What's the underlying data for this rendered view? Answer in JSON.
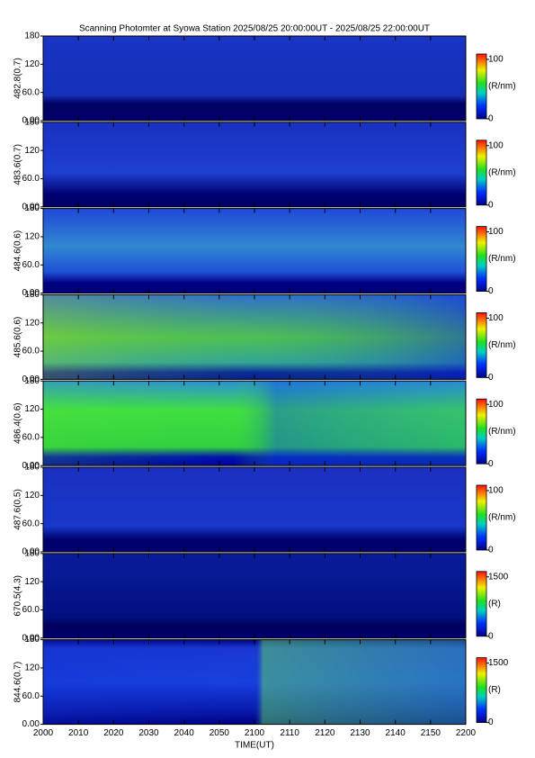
{
  "chart_data": {
    "type": "keogram",
    "title": "Scanning Photomter at Syowa Station  2025/08/25 20:00:00UT - 2025/08/25 22:00:00UT",
    "xlabel": "TIME(UT)",
    "xticks": [
      "2000",
      "2010",
      "2020",
      "2030",
      "2040",
      "2050",
      "2100",
      "2110",
      "2120",
      "2130",
      "2140",
      "2150",
      "2200"
    ],
    "panels": [
      {
        "ylabel": "482.8(0.7)",
        "ylim": [
          0,
          180
        ],
        "yticks": [
          {
            "value": 0,
            "label": "0.00"
          },
          {
            "value": 60,
            "label": "60.0"
          },
          120,
          180
        ],
        "clim": [
          0,
          100
        ],
        "cticks": [
          0,
          100
        ],
        "clabel": "(R/nm)"
      },
      {
        "ylabel": "483.6(0.7)",
        "ylim": [
          0,
          180
        ],
        "yticks": [
          {
            "value": 0,
            "label": "0.00"
          },
          {
            "value": 60,
            "label": "60.0"
          },
          120,
          180
        ],
        "clim": [
          0,
          100
        ],
        "cticks": [
          0,
          100
        ],
        "clabel": "(R/nm)"
      },
      {
        "ylabel": "484.6(0.6)",
        "ylim": [
          0,
          180
        ],
        "yticks": [
          {
            "value": 0,
            "label": "0.00"
          },
          {
            "value": 60,
            "label": "60.0"
          },
          120,
          180
        ],
        "clim": [
          0,
          100
        ],
        "cticks": [
          0,
          100
        ],
        "clabel": "(R/nm)"
      },
      {
        "ylabel": "485.6(0.6)",
        "ylim": [
          0,
          180
        ],
        "yticks": [
          {
            "value": 0,
            "label": "0.00"
          },
          {
            "value": 60,
            "label": "60.0"
          },
          120,
          180
        ],
        "clim": [
          0,
          100
        ],
        "cticks": [
          0,
          100
        ],
        "clabel": "(R/nm)"
      },
      {
        "ylabel": "486.4(0.6)",
        "ylim": [
          0,
          180
        ],
        "yticks": [
          {
            "value": 0,
            "label": "0.00"
          },
          {
            "value": 60,
            "label": "60.0"
          },
          120,
          180
        ],
        "clim": [
          0,
          100
        ],
        "cticks": [
          0,
          100
        ],
        "clabel": "(R/nm)"
      },
      {
        "ylabel": "487.6(0.5)",
        "ylim": [
          0,
          180
        ],
        "yticks": [
          {
            "value": 0,
            "label": "0.00"
          },
          {
            "value": 60,
            "label": "60.0"
          },
          120,
          180
        ],
        "clim": [
          0,
          100
        ],
        "cticks": [
          0,
          100
        ],
        "clabel": "(R/nm)"
      },
      {
        "ylabel": "670.5(4.3)",
        "ylim": [
          0,
          180
        ],
        "yticks": [
          {
            "value": 0,
            "label": "0.00"
          },
          {
            "value": 60,
            "label": "60.0"
          },
          120,
          180
        ],
        "clim": [
          0,
          1500
        ],
        "cticks": [
          0,
          1500
        ],
        "clabel": "(R)"
      },
      {
        "ylabel": "844.6(0.7)",
        "ylim": [
          0,
          180
        ],
        "yticks": [
          {
            "value": 0,
            "label": "0.00"
          },
          {
            "value": 60,
            "label": "60.0"
          },
          120,
          180
        ],
        "clim": [
          0,
          1500
        ],
        "cticks": [
          0,
          1500
        ],
        "clabel": "(R)"
      }
    ]
  }
}
